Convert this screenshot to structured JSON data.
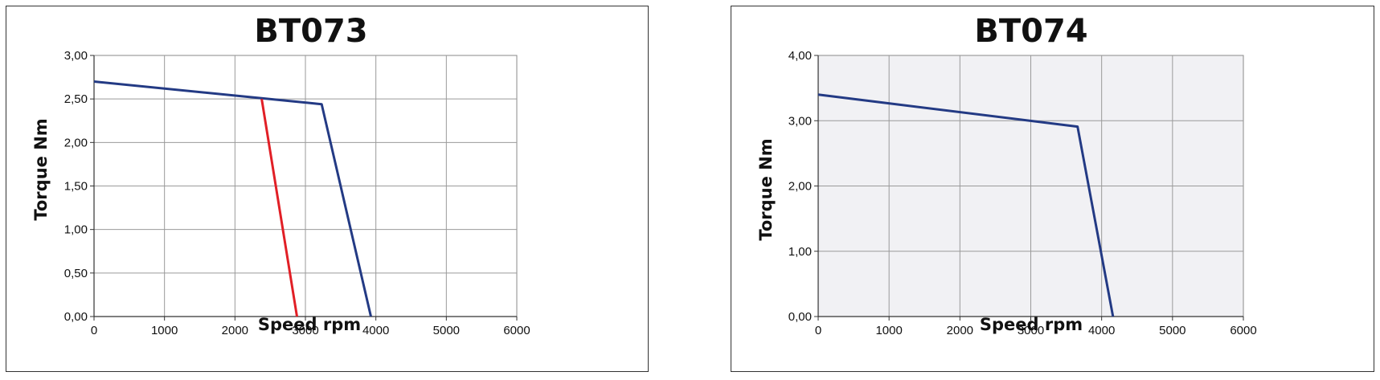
{
  "chart_data": [
    {
      "type": "line",
      "title": "BT073",
      "xlabel": "Speed rpm",
      "ylabel": "Torque Nm",
      "xlim": [
        0,
        6000
      ],
      "ylim": [
        0,
        3
      ],
      "x_ticks": [
        "0",
        "1000",
        "2000",
        "3000",
        "4000",
        "5000",
        "6000"
      ],
      "y_ticks": [
        "0,00",
        "0,50",
        "1,00",
        "1,50",
        "2,00",
        "2,50",
        "3,00"
      ],
      "grid": true,
      "plot_background": "#ffffff",
      "series": [
        {
          "color": "#233a84",
          "x": [
            0,
            3230,
            3930
          ],
          "y": [
            2.7,
            2.44,
            0.0
          ]
        },
        {
          "color": "#e11f26",
          "x": [
            2380,
            2880
          ],
          "y": [
            2.5,
            0.0
          ]
        }
      ]
    },
    {
      "type": "line",
      "title": "BT074",
      "xlabel": "Speed rpm",
      "ylabel": "Torque Nm",
      "xlim": [
        0,
        6000
      ],
      "ylim": [
        0,
        4
      ],
      "x_ticks": [
        "0",
        "1000",
        "2000",
        "3000",
        "4000",
        "5000",
        "6000"
      ],
      "y_ticks": [
        "0,00",
        "1,00",
        "2,00",
        "3,00",
        "4,00"
      ],
      "grid": true,
      "plot_background": "#f1f1f4",
      "series": [
        {
          "color": "#233a84",
          "x": [
            0,
            3660,
            4160
          ],
          "y": [
            3.4,
            2.91,
            0.0
          ]
        }
      ]
    }
  ]
}
